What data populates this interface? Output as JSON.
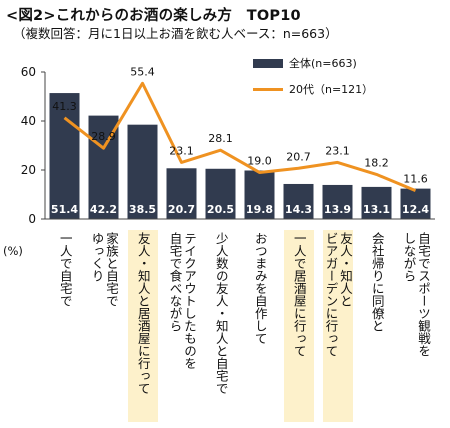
{
  "header": {
    "title": "<図2>これからのお酒の楽しみ方　TOP10",
    "subtitle": "（複数回答：月に1日以上お酒を飲む人ベース：n=663）"
  },
  "axis": {
    "unit_label": "(%)"
  },
  "colors": {
    "bar": "#313b4f",
    "line": "#ef9221",
    "highlight": "#fdf1cb"
  },
  "chart_data": {
    "type": "bar",
    "categories": [
      "一人で自宅で",
      "家族と自宅でゆっくり",
      "友人・知人と居酒屋に行って",
      "テイクアウトしたものを自宅で食べながら",
      "少人数の友人・知人と自宅で",
      "おつまみを自作して",
      "一人で居酒屋に行って",
      "友人・知人とビアガーデンに行って",
      "会社帰りに同僚と",
      "自宅でスポーツ観戦をしながら"
    ],
    "category_lines": [
      [
        "一人で自宅で"
      ],
      [
        "家族と自宅で",
        "ゆっくり"
      ],
      [
        "友人・知人と居酒屋に行って"
      ],
      [
        "テイクアウトしたものを",
        "自宅で食べながら"
      ],
      [
        "少人数の友人・知人と自宅で"
      ],
      [
        "おつまみを自作して"
      ],
      [
        "一人で居酒屋に行って"
      ],
      [
        "友人・知人と",
        "ビアガーデンに行って"
      ],
      [
        "会社帰りに同僚と"
      ],
      [
        "自宅でスポーツ観戦を",
        "しながら"
      ]
    ],
    "highlighted": [
      false,
      false,
      true,
      false,
      false,
      false,
      true,
      true,
      false,
      false
    ],
    "series": [
      {
        "name": "全体(n=663)",
        "type": "bar",
        "values": [
          51.4,
          42.2,
          38.5,
          20.7,
          20.5,
          19.8,
          14.3,
          13.9,
          13.1,
          12.4
        ]
      },
      {
        "name": "20代（n=121）",
        "type": "line",
        "values": [
          41.3,
          28.9,
          55.4,
          23.1,
          28.1,
          19.0,
          20.7,
          23.1,
          18.2,
          11.6
        ]
      }
    ],
    "ylim": [
      0,
      60
    ],
    "yticks": [
      0,
      20,
      40,
      60
    ],
    "grid": false
  }
}
